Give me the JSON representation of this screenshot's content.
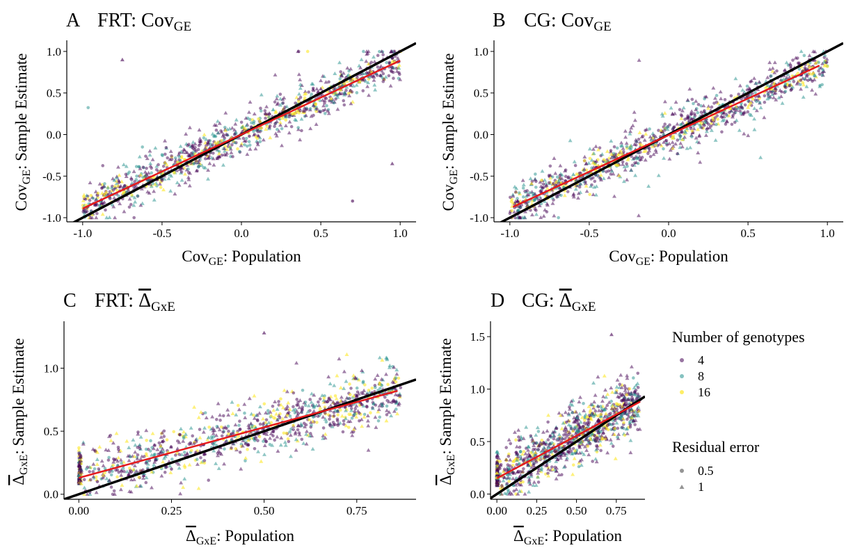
{
  "legend": {
    "color_title": "Number of genotypes",
    "color_items": [
      {
        "label": "4",
        "color": "#440154"
      },
      {
        "label": "8",
        "color": "#21908C"
      },
      {
        "label": "16",
        "color": "#FDE725"
      }
    ],
    "shape_title": "Residual error",
    "shape_items": [
      {
        "label": "0.5",
        "shape": "circle"
      },
      {
        "label": "1",
        "shape": "triangle"
      }
    ]
  },
  "chart_data": [
    {
      "id": "A",
      "type": "scatter",
      "panel_letter": "A",
      "title_main": "FRT: Cov",
      "title_sub": "GE",
      "xlabel_main": "Cov",
      "xlabel_sub": "GE",
      "xlabel_rest": ": Population",
      "ylabel_main": "Cov",
      "ylabel_sub": "GE",
      "ylabel_rest": ": Sample Estimate",
      "xlim": [
        -1.1,
        1.1
      ],
      "ylim": [
        -1.05,
        1.1
      ],
      "xticks": [
        -1.0,
        -0.5,
        0.0,
        0.5,
        1.0
      ],
      "xtick_labels": [
        "-1.0",
        "-0.5",
        "0.0",
        "0.5",
        "1.0"
      ],
      "yticks": [
        -1.0,
        -0.5,
        0.0,
        0.5,
        1.0
      ],
      "ytick_labels": [
        "-1.0",
        "-0.5",
        "0.0",
        "0.5",
        "1.0"
      ],
      "identity_line": {
        "color": "#000000",
        "x": [
          -1.1,
          1.1
        ],
        "y": [
          -1.1,
          1.1
        ]
      },
      "fit_line": {
        "color": "#E41A1C",
        "x": [
          -1.0,
          1.0
        ],
        "y": [
          -0.89,
          0.89
        ]
      },
      "sample_points": [
        {
          "x": -0.92,
          "y": -0.85,
          "g": 4,
          "e": 0.5
        },
        {
          "x": -0.8,
          "y": -0.55,
          "g": 8,
          "e": 1
        },
        {
          "x": -0.6,
          "y": -0.62,
          "g": 16,
          "e": 0.5
        },
        {
          "x": -0.45,
          "y": -0.3,
          "g": 4,
          "e": 1
        },
        {
          "x": -0.3,
          "y": -0.35,
          "g": 8,
          "e": 0.5
        },
        {
          "x": -0.1,
          "y": 0.05,
          "g": 16,
          "e": 1
        },
        {
          "x": 0.05,
          "y": -0.02,
          "g": 4,
          "e": 0.5
        },
        {
          "x": 0.2,
          "y": 0.3,
          "g": 8,
          "e": 1
        },
        {
          "x": 0.35,
          "y": 0.28,
          "g": 16,
          "e": 0.5
        },
        {
          "x": 0.5,
          "y": 0.55,
          "g": 4,
          "e": 1
        },
        {
          "x": 0.65,
          "y": 0.5,
          "g": 8,
          "e": 0.5
        },
        {
          "x": 0.8,
          "y": 0.85,
          "g": 16,
          "e": 1
        },
        {
          "x": 0.95,
          "y": 0.92,
          "g": 4,
          "e": 0.5
        },
        {
          "x": -0.75,
          "y": 0.9,
          "g": 4,
          "e": 1
        },
        {
          "x": 0.95,
          "y": -0.35,
          "g": 4,
          "e": 1
        },
        {
          "x": 0.7,
          "y": -0.8,
          "g": 4,
          "e": 0.5
        }
      ]
    },
    {
      "id": "B",
      "type": "scatter",
      "panel_letter": "B",
      "title_main": "CG: Cov",
      "title_sub": "GE",
      "xlabel_main": "Cov",
      "xlabel_sub": "GE",
      "xlabel_rest": ": Population",
      "ylabel_main": "Cov",
      "ylabel_sub": "GE",
      "ylabel_rest": ": Sample Estimate",
      "xlim": [
        -1.1,
        1.1
      ],
      "ylim": [
        -1.05,
        1.1
      ],
      "xticks": [
        -1.0,
        -0.5,
        0.0,
        0.5,
        1.0
      ],
      "xtick_labels": [
        "-1.0",
        "-0.5",
        "0.0",
        "0.5",
        "1.0"
      ],
      "yticks": [
        -1.0,
        -0.5,
        0.0,
        0.5,
        1.0
      ],
      "ytick_labels": [
        "-1.0",
        "-0.5",
        "0.0",
        "0.5",
        "1.0"
      ],
      "identity_line": {
        "color": "#000000",
        "x": [
          -1.1,
          1.1
        ],
        "y": [
          -1.1,
          1.1
        ]
      },
      "fit_line": {
        "color": "#E41A1C",
        "x": [
          -0.98,
          0.95
        ],
        "y": [
          -0.87,
          0.83
        ]
      },
      "sample_points": [
        {
          "x": -0.95,
          "y": -0.8,
          "g": 4,
          "e": 1
        },
        {
          "x": -0.8,
          "y": -0.55,
          "g": 16,
          "e": 0.5
        },
        {
          "x": -0.6,
          "y": -0.48,
          "g": 8,
          "e": 1
        },
        {
          "x": -0.45,
          "y": -0.4,
          "g": 4,
          "e": 0.5
        },
        {
          "x": -0.3,
          "y": -0.2,
          "g": 16,
          "e": 1
        },
        {
          "x": -0.1,
          "y": -0.1,
          "g": 8,
          "e": 0.5
        },
        {
          "x": 0.05,
          "y": 0.05,
          "g": 4,
          "e": 1
        },
        {
          "x": 0.2,
          "y": 0.15,
          "g": 16,
          "e": 0.5
        },
        {
          "x": 0.35,
          "y": 0.3,
          "g": 8,
          "e": 1
        },
        {
          "x": 0.5,
          "y": 0.45,
          "g": 4,
          "e": 0.5
        },
        {
          "x": 0.65,
          "y": 0.55,
          "g": 16,
          "e": 1
        },
        {
          "x": 0.8,
          "y": 0.7,
          "g": 8,
          "e": 0.5
        },
        {
          "x": 0.92,
          "y": 0.9,
          "g": 4,
          "e": 1
        }
      ]
    },
    {
      "id": "C",
      "type": "scatter",
      "panel_letter": "C",
      "title_main": "FRT: ",
      "title_delta": "Δ",
      "title_sub": "GxE",
      "xlabel_delta": "Δ",
      "xlabel_sub": "GxE",
      "xlabel_rest": ": Population",
      "ylabel_delta": "Δ",
      "ylabel_sub": "GxE",
      "ylabel_rest": ": Sample Estimate",
      "xlim": [
        -0.04,
        0.91
      ],
      "ylim": [
        -0.04,
        1.35
      ],
      "xticks": [
        0.0,
        0.25,
        0.5,
        0.75
      ],
      "xtick_labels": [
        "0.00",
        "0.25",
        "0.50",
        "0.75"
      ],
      "yticks": [
        0.0,
        0.5,
        1.0
      ],
      "ytick_labels": [
        "0.0",
        "0.5",
        "1.0"
      ],
      "identity_line": {
        "color": "#000000",
        "x": [
          -0.04,
          0.91
        ],
        "y": [
          -0.04,
          0.91
        ]
      },
      "fit_line": {
        "color": "#E41A1C",
        "x": [
          0.0,
          0.86
        ],
        "y": [
          0.13,
          0.82
        ]
      },
      "sample_points": [
        {
          "x": 0.0,
          "y": 0.15,
          "g": 8,
          "e": 1
        },
        {
          "x": 0.0,
          "y": 0.35,
          "g": 16,
          "e": 1
        },
        {
          "x": 0.05,
          "y": 0.1,
          "g": 4,
          "e": 0.5
        },
        {
          "x": 0.15,
          "y": 0.3,
          "g": 16,
          "e": 1
        },
        {
          "x": 0.25,
          "y": 0.2,
          "g": 4,
          "e": 0.5
        },
        {
          "x": 0.35,
          "y": 0.45,
          "g": 8,
          "e": 1
        },
        {
          "x": 0.45,
          "y": 0.4,
          "g": 4,
          "e": 0.5
        },
        {
          "x": 0.55,
          "y": 0.6,
          "g": 16,
          "e": 1
        },
        {
          "x": 0.65,
          "y": 0.65,
          "g": 8,
          "e": 0.5
        },
        {
          "x": 0.75,
          "y": 0.78,
          "g": 4,
          "e": 1
        },
        {
          "x": 0.85,
          "y": 0.85,
          "g": 4,
          "e": 0.5
        },
        {
          "x": 0.5,
          "y": 1.28,
          "g": 4,
          "e": 1
        }
      ]
    },
    {
      "id": "D",
      "type": "scatter",
      "panel_letter": "D",
      "title_main": "CG: ",
      "title_delta": "Δ",
      "title_sub": "GxE",
      "xlabel_delta": "Δ",
      "xlabel_sub": "GxE",
      "xlabel_rest": ": Population",
      "ylabel_delta": "Δ",
      "ylabel_sub": "GxE",
      "ylabel_rest": ": Sample Estimate",
      "xlim": [
        -0.04,
        0.93
      ],
      "ylim": [
        -0.05,
        1.62
      ],
      "xticks": [
        0.0,
        0.25,
        0.5,
        0.75
      ],
      "xtick_labels": [
        "0.00",
        "0.25",
        "0.50",
        "0.75"
      ],
      "yticks": [
        0.0,
        0.5,
        1.0,
        1.5
      ],
      "ytick_labels": [
        "0.0",
        "0.5",
        "1.0",
        "1.5"
      ],
      "identity_line": {
        "color": "#000000",
        "x": [
          -0.04,
          0.93
        ],
        "y": [
          -0.04,
          0.93
        ]
      },
      "fit_line": {
        "color": "#E41A1C",
        "x": [
          0.0,
          0.9
        ],
        "y": [
          0.15,
          0.88
        ]
      },
      "sample_points": [
        {
          "x": 0.0,
          "y": 0.2,
          "g": 16,
          "e": 1
        },
        {
          "x": 0.0,
          "y": 0.4,
          "g": 8,
          "e": 1
        },
        {
          "x": 0.1,
          "y": 0.2,
          "g": 4,
          "e": 0.5
        },
        {
          "x": 0.2,
          "y": 0.45,
          "g": 8,
          "e": 1
        },
        {
          "x": 0.3,
          "y": 0.35,
          "g": 4,
          "e": 0.5
        },
        {
          "x": 0.4,
          "y": 0.75,
          "g": 16,
          "e": 1
        },
        {
          "x": 0.5,
          "y": 0.55,
          "g": 4,
          "e": 0.5
        },
        {
          "x": 0.6,
          "y": 0.85,
          "g": 8,
          "e": 1
        },
        {
          "x": 0.7,
          "y": 0.7,
          "g": 4,
          "e": 0.5
        },
        {
          "x": 0.8,
          "y": 0.85,
          "g": 4,
          "e": 1
        },
        {
          "x": 0.72,
          "y": 1.52,
          "g": 4,
          "e": 1
        }
      ]
    }
  ]
}
